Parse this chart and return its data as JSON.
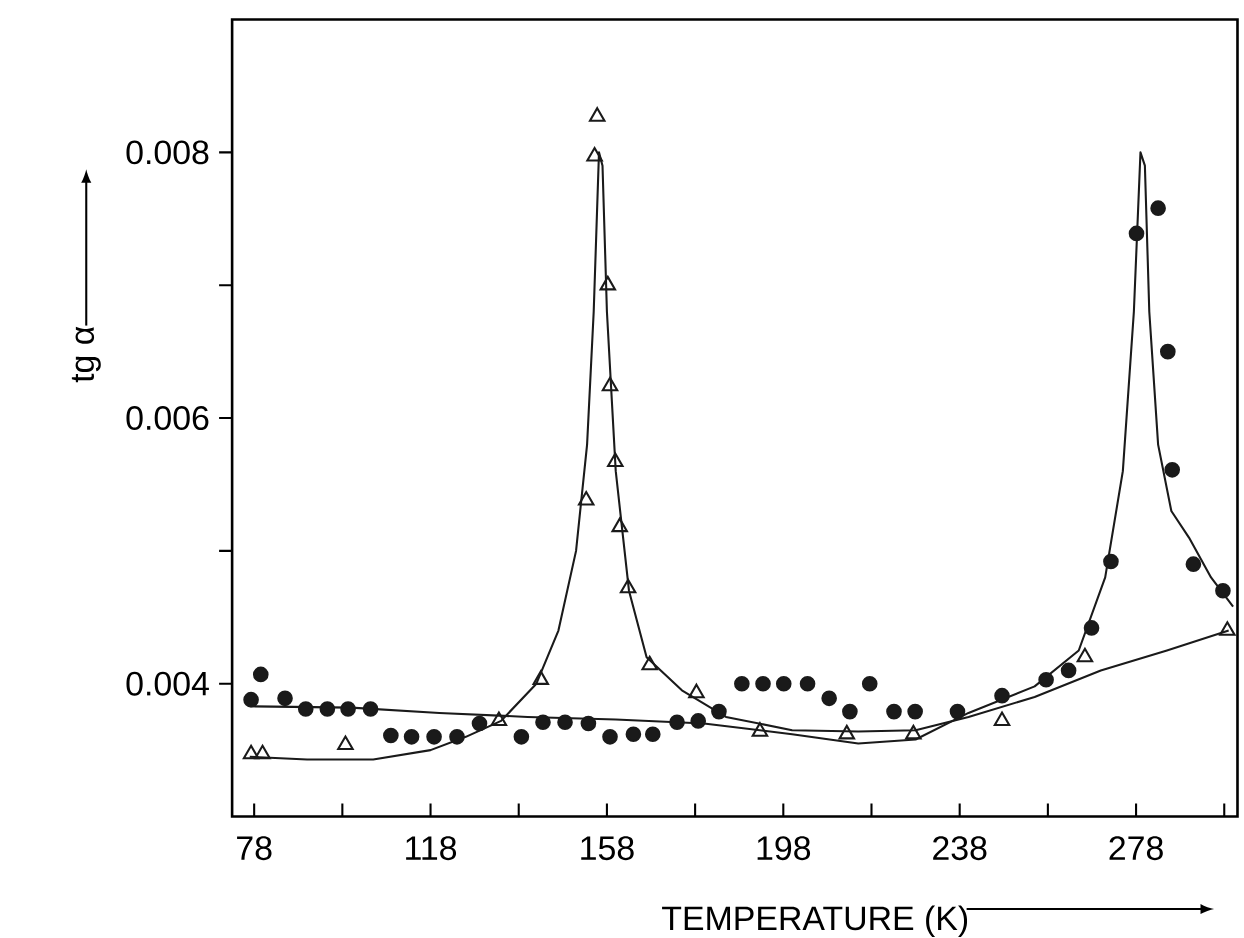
{
  "chart_data": {
    "type": "scatter",
    "xlabel": "TEMPERATURE (K)",
    "ylabel": "tg α",
    "xlim": [
      73,
      301
    ],
    "ylim": [
      0.003,
      0.009
    ],
    "xticks": [
      78,
      {
        "value": 98,
        "label": null
      },
      118,
      {
        "value": 138,
        "label": null
      },
      158,
      {
        "value": 178,
        "label": null
      },
      198,
      {
        "value": 218,
        "label": null
      },
      238,
      {
        "value": 258,
        "label": null
      },
      278,
      {
        "value": 298,
        "label": null
      }
    ],
    "yticks": [
      0.004,
      {
        "value": 0.005,
        "label": null
      },
      0.006,
      {
        "value": 0.007,
        "label": null
      },
      0.008
    ],
    "series": [
      {
        "type": "line",
        "color": "#1a1a1a",
        "marker": "none",
        "x": [
          77,
          90,
          105,
          118,
          126,
          134,
          142,
          147,
          151,
          153.5,
          155,
          156.2,
          157,
          158,
          160,
          163,
          167,
          175,
          185,
          200,
          215,
          228,
          240,
          255,
          270,
          285,
          299
        ],
        "values": [
          0.00345,
          0.00343,
          0.00343,
          0.0035,
          0.0036,
          0.00372,
          0.004,
          0.0044,
          0.005,
          0.0058,
          0.0068,
          0.008,
          0.0079,
          0.0068,
          0.0056,
          0.0047,
          0.0042,
          0.00395,
          0.00375,
          0.00365,
          0.00364,
          0.00365,
          0.00375,
          0.0039,
          0.0041,
          0.00425,
          0.0044
        ]
      },
      {
        "type": "line",
        "color": "#1a1a1a",
        "marker": "none",
        "x": [
          77,
          100,
          120,
          140,
          160,
          180,
          200,
          215,
          228,
          240,
          255,
          265,
          271,
          275,
          277.5,
          279,
          280,
          281,
          283,
          286,
          290,
          295,
          300
        ],
        "values": [
          0.00383,
          0.00382,
          0.00378,
          0.00375,
          0.00373,
          0.0037,
          0.00362,
          0.00355,
          0.00358,
          0.00378,
          0.00398,
          0.00425,
          0.0048,
          0.0056,
          0.0068,
          0.008,
          0.0079,
          0.0068,
          0.0058,
          0.0053,
          0.0051,
          0.0048,
          0.00458
        ]
      },
      {
        "color": "#1a1a1a",
        "marker": "circle",
        "x": [
          77.3,
          79.5,
          85,
          89.7,
          94.6,
          99.3,
          104.4,
          109,
          113.7,
          118.8,
          124,
          129.1,
          138.6,
          143.5,
          148.5,
          153.8,
          158.7,
          164,
          168.4,
          173.9,
          178.7,
          183.4,
          188.6,
          193.4,
          198.1,
          203.5,
          208.4,
          213.1,
          217.6,
          223.1,
          227.9,
          237.5,
          247.6,
          257.6,
          262.7,
          267.9,
          272.3,
          278.1,
          283,
          285.2,
          286.2,
          291,
          297.7
        ],
        "values": [
          0.00388,
          0.00407,
          0.00389,
          0.00381,
          0.00381,
          0.00381,
          0.00381,
          0.00361,
          0.0036,
          0.0036,
          0.0036,
          0.0037,
          0.0036,
          0.00371,
          0.00371,
          0.0037,
          0.0036,
          0.00362,
          0.00362,
          0.00371,
          0.00372,
          0.00379,
          0.004,
          0.004,
          0.004,
          0.004,
          0.00389,
          0.00379,
          0.004,
          0.00379,
          0.00379,
          0.00379,
          0.00391,
          0.00403,
          0.0041,
          0.00442,
          0.00492,
          0.00739,
          0.00758,
          0.0065,
          0.00561,
          0.0049,
          0.0047
        ]
      },
      {
        "color": "#1a1a1a",
        "marker": "triangle",
        "x": [
          77.3,
          79.9,
          98.7,
          133.5,
          143,
          153.3,
          155.2,
          155.8,
          158.2,
          158.7,
          159.9,
          160.9,
          162.8,
          167.7,
          178.3,
          192.7,
          212.4,
          227.5,
          247.6,
          266.4,
          298.7
        ],
        "values": [
          0.00347,
          0.00347,
          0.00354,
          0.00372,
          0.00403,
          0.00538,
          0.00797,
          0.00827,
          0.007,
          0.00624,
          0.00567,
          0.00518,
          0.00472,
          0.00414,
          0.00393,
          0.00364,
          0.00362,
          0.00362,
          0.00372,
          0.0042,
          0.0044
        ]
      }
    ]
  }
}
